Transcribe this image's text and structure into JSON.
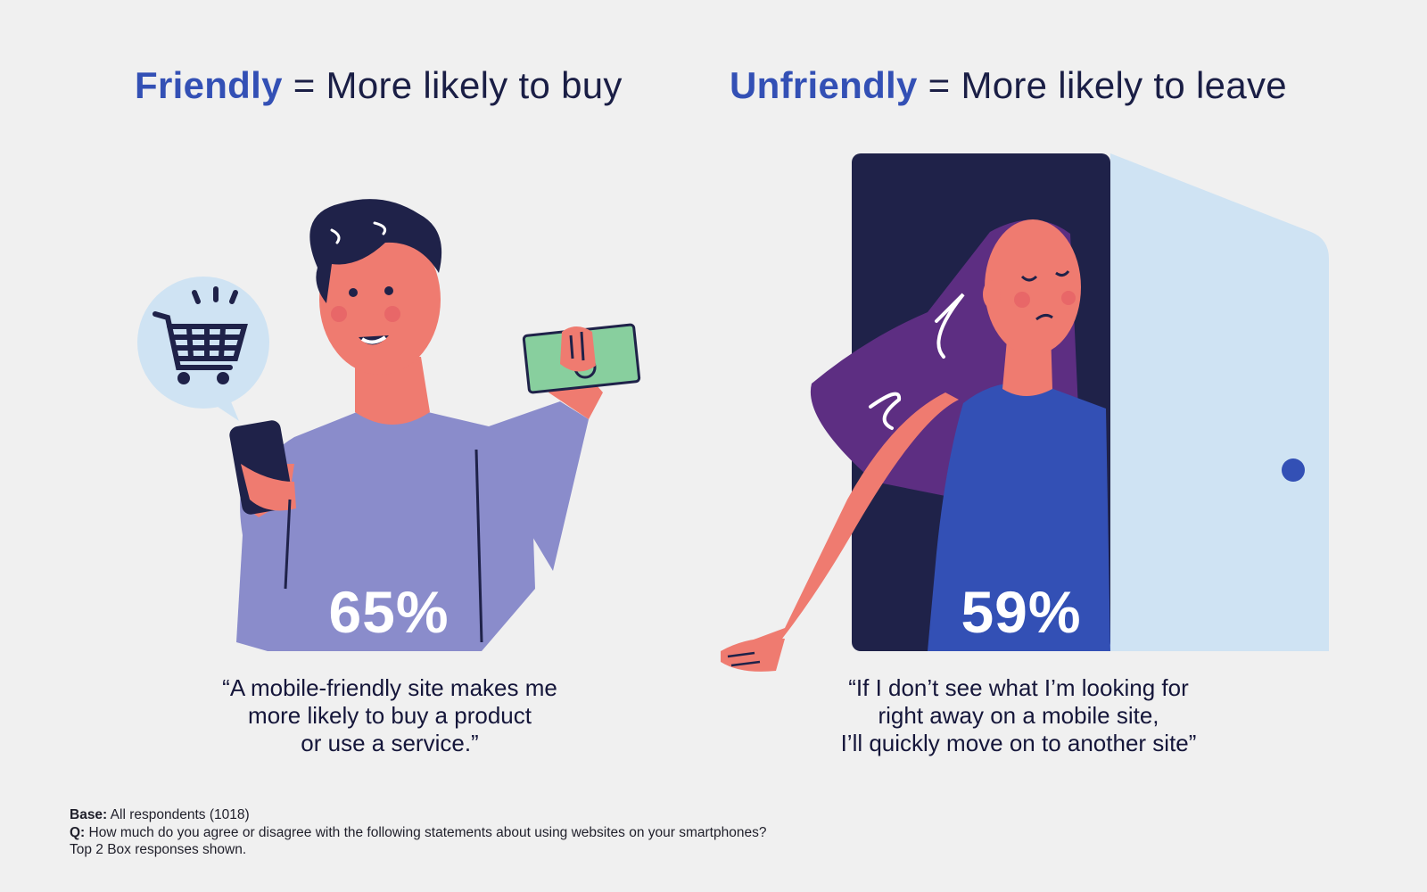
{
  "left": {
    "headline_accent": "Friendly",
    "headline_rest": " = More likely to buy",
    "stat": "65%",
    "quote_lines": [
      "“A mobile-friendly site makes me",
      "more likely to buy a product",
      "or use a service.”"
    ],
    "icons": [
      "shopping-cart-icon",
      "smartphone-icon",
      "cash-icon"
    ]
  },
  "right": {
    "headline_accent": "Unfriendly",
    "headline_rest": " = More likely to leave",
    "stat": "59%",
    "quote_lines": [
      "“If I don’t see what I’m looking for",
      "right away on a mobile site,",
      "I’ll quickly move on to another site”"
    ],
    "icons": [
      "door-icon"
    ]
  },
  "footnote": {
    "base_label": "Base:",
    "base_text": " All respondents (1018)",
    "q_label": "Q:",
    "q_text": " How much do you agree or disagree with the following statements about using websites on your smartphones?",
    "note": "Top 2 Box responses shown."
  },
  "colors": {
    "background": "#f0f0f0",
    "accent": "#3350b5",
    "text_dark": "#1a1e45",
    "skin": "#ef7b70",
    "shirt": "#8a8ccb",
    "navy": "#1f2249",
    "door": "#cfe3f3",
    "dress": "#3350b5",
    "hair_woman": "#5d2e82",
    "money": "#88cf9e"
  }
}
